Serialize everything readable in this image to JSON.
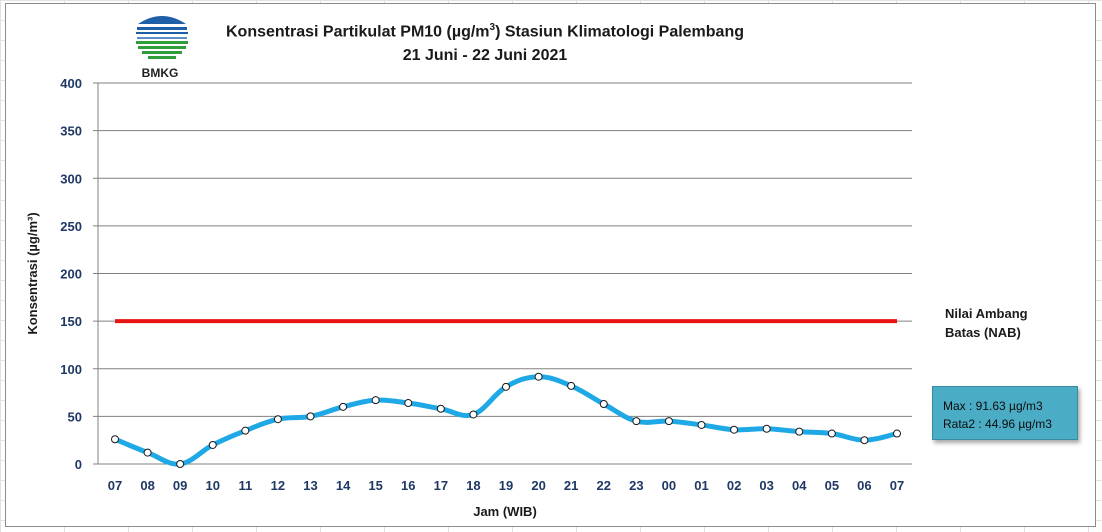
{
  "header": {
    "title_main": "Konsentrasi Partikulat PM10 (µg/m",
    "title_sup": "3",
    "title_tail": ") Stasiun Klimatologi Palembang",
    "subtitle": "21 Juni - 22 Juni 2021",
    "logo_text": "BMKG"
  },
  "annotations": {
    "nab_line1": "Nilai Ambang",
    "nab_line2": "Batas  (NAB)",
    "max_text": "Max : 91.63 µg/m3",
    "avg_text": "Rata2 : 44.96 µg/m3"
  },
  "colors": {
    "series": "#1fa8e6",
    "nab": "#e81414",
    "grid": "#808080",
    "axis_text": "#1f3864",
    "stat_box": "#4bacc6"
  },
  "chart_data": {
    "type": "line",
    "title": "Konsentrasi Partikulat PM10 (µg/m3) Stasiun Klimatologi Palembang",
    "subtitle": "21 Juni - 22 Juni 2021",
    "xlabel": "Jam (WIB)",
    "ylabel": "Konsentrasi (µg/m³)",
    "ylim": [
      0,
      400
    ],
    "yticks": [
      0,
      50,
      100,
      150,
      200,
      250,
      300,
      350,
      400
    ],
    "grid": true,
    "categories": [
      "07",
      "08",
      "09",
      "10",
      "11",
      "12",
      "13",
      "14",
      "15",
      "16",
      "17",
      "18",
      "19",
      "20",
      "21",
      "22",
      "23",
      "00",
      "01",
      "02",
      "03",
      "04",
      "05",
      "06",
      "07"
    ],
    "series": [
      {
        "values": [
          26,
          12,
          0,
          20,
          35,
          47,
          50,
          60,
          67,
          64,
          58,
          52,
          81,
          91.63,
          82,
          63,
          45,
          45,
          41,
          36,
          37,
          34,
          32,
          25,
          32
        ]
      }
    ],
    "threshold": {
      "value": 150
    }
  }
}
